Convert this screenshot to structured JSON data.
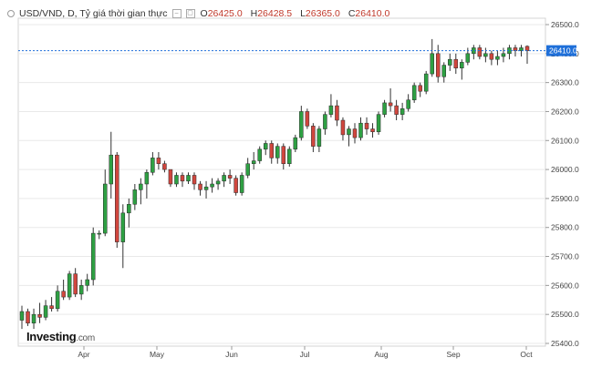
{
  "header": {
    "symbol": "USD/VND, D, Tỷ giá thời gian thực",
    "open_label": "O",
    "open": "26425.0",
    "high_label": "H",
    "high": "26428.5",
    "low_label": "L",
    "low": "26365.0",
    "close_label": "C",
    "close": "26410.0"
  },
  "brand": {
    "name": "Investing",
    "suffix": ".com"
  },
  "colors": {
    "up": "#2ea043",
    "down": "#d0463e",
    "wick": "#333333",
    "grid": "#e9e9e9",
    "last_line": "#1e6fd9",
    "last_tag": "#1e6fd9"
  },
  "chart_data": {
    "type": "candlestick",
    "title": "USD/VND, D, Tỷ giá thời gian thực",
    "ylim": [
      25400,
      26500
    ],
    "y_ticks": [
      "26500.0",
      "26400.0",
      "26300.0",
      "26200.0",
      "26100.0",
      "26000.0",
      "25900.0",
      "25800.0",
      "25700.0",
      "25600.0",
      "25500.0",
      "25400.0"
    ],
    "x_ticks": [
      "Apr",
      "May",
      "Jun",
      "Jul",
      "Aug",
      "Sep",
      "Oct"
    ],
    "last_price": "26410.0",
    "ohlc": [
      [
        25480,
        25530,
        25450,
        25510
      ],
      [
        25510,
        25520,
        25460,
        25470
      ],
      [
        25470,
        25520,
        25450,
        25500
      ],
      [
        25500,
        25540,
        25470,
        25490
      ],
      [
        25490,
        25550,
        25480,
        25530
      ],
      [
        25530,
        25560,
        25510,
        25520
      ],
      [
        25520,
        25600,
        25510,
        25580
      ],
      [
        25580,
        25620,
        25550,
        25560
      ],
      [
        25560,
        25650,
        25550,
        25640
      ],
      [
        25640,
        25660,
        25560,
        25570
      ],
      [
        25570,
        25620,
        25550,
        25600
      ],
      [
        25600,
        25640,
        25580,
        25620
      ],
      [
        25620,
        25800,
        25600,
        25780
      ],
      [
        25780,
        25790,
        25760,
        25780
      ],
      [
        25780,
        26000,
        25770,
        25950
      ],
      [
        25950,
        26130,
        25900,
        26050
      ],
      [
        26050,
        26060,
        25730,
        25750
      ],
      [
        25750,
        25880,
        25660,
        25850
      ],
      [
        25850,
        25900,
        25800,
        25880
      ],
      [
        25880,
        25950,
        25860,
        25930
      ],
      [
        25930,
        25970,
        25880,
        25950
      ],
      [
        25950,
        26000,
        25900,
        25990
      ],
      [
        25990,
        26060,
        25980,
        26040
      ],
      [
        26040,
        26060,
        26000,
        26020
      ],
      [
        26020,
        26030,
        25990,
        26000
      ],
      [
        26000,
        26000,
        25940,
        25950
      ],
      [
        25950,
        25990,
        25940,
        25980
      ],
      [
        25980,
        25990,
        25940,
        25960
      ],
      [
        25960,
        25990,
        25950,
        25980
      ],
      [
        25980,
        25990,
        25930,
        25950
      ],
      [
        25950,
        25960,
        25910,
        25930
      ],
      [
        25930,
        25960,
        25900,
        25940
      ],
      [
        25940,
        25970,
        25920,
        25950
      ],
      [
        25950,
        25970,
        25930,
        25960
      ],
      [
        25960,
        25990,
        25940,
        25980
      ],
      [
        25980,
        26000,
        25950,
        25970
      ],
      [
        25970,
        25980,
        25910,
        25920
      ],
      [
        25920,
        25990,
        25910,
        25980
      ],
      [
        25980,
        26040,
        25970,
        26020
      ],
      [
        26020,
        26060,
        26000,
        26030
      ],
      [
        26030,
        26080,
        26020,
        26070
      ],
      [
        26070,
        26100,
        26050,
        26090
      ],
      [
        26090,
        26100,
        26020,
        26040
      ],
      [
        26040,
        26090,
        26020,
        26080
      ],
      [
        26080,
        26090,
        26000,
        26020
      ],
      [
        26020,
        26080,
        26010,
        26070
      ],
      [
        26070,
        26120,
        26060,
        26110
      ],
      [
        26110,
        26220,
        26100,
        26200
      ],
      [
        26200,
        26210,
        26140,
        26150
      ],
      [
        26150,
        26160,
        26060,
        26080
      ],
      [
        26080,
        26150,
        26060,
        26140
      ],
      [
        26140,
        26200,
        26120,
        26190
      ],
      [
        26190,
        26260,
        26180,
        26220
      ],
      [
        26220,
        26240,
        26150,
        26170
      ],
      [
        26170,
        26180,
        26100,
        26120
      ],
      [
        26120,
        26150,
        26080,
        26140
      ],
      [
        26140,
        26160,
        26090,
        26110
      ],
      [
        26110,
        26180,
        26100,
        26160
      ],
      [
        26160,
        26180,
        26120,
        26140
      ],
      [
        26140,
        26160,
        26110,
        26130
      ],
      [
        26130,
        26200,
        26120,
        26190
      ],
      [
        26190,
        26240,
        26180,
        26230
      ],
      [
        26230,
        26280,
        26200,
        26220
      ],
      [
        26220,
        26240,
        26170,
        26190
      ],
      [
        26190,
        26230,
        26170,
        26210
      ],
      [
        26210,
        26260,
        26200,
        26240
      ],
      [
        26240,
        26300,
        26230,
        26290
      ],
      [
        26290,
        26300,
        26250,
        26270
      ],
      [
        26270,
        26340,
        26260,
        26330
      ],
      [
        26330,
        26450,
        26320,
        26400
      ],
      [
        26400,
        26430,
        26300,
        26320
      ],
      [
        26320,
        26370,
        26300,
        26360
      ],
      [
        26360,
        26400,
        26340,
        26380
      ],
      [
        26380,
        26400,
        26330,
        26350
      ],
      [
        26350,
        26380,
        26310,
        26370
      ],
      [
        26370,
        26420,
        26360,
        26400
      ],
      [
        26400,
        26430,
        26380,
        26420
      ],
      [
        26420,
        26430,
        26380,
        26390
      ],
      [
        26390,
        26420,
        26370,
        26400
      ],
      [
        26400,
        26410,
        26360,
        26380
      ],
      [
        26380,
        26410,
        26360,
        26390
      ],
      [
        26390,
        26420,
        26370,
        26400
      ],
      [
        26400,
        26430,
        26380,
        26420
      ],
      [
        26420,
        26430,
        26390,
        26410
      ],
      [
        26410,
        26430,
        26390,
        26420
      ],
      [
        26425,
        26428.5,
        26365,
        26410
      ]
    ]
  }
}
